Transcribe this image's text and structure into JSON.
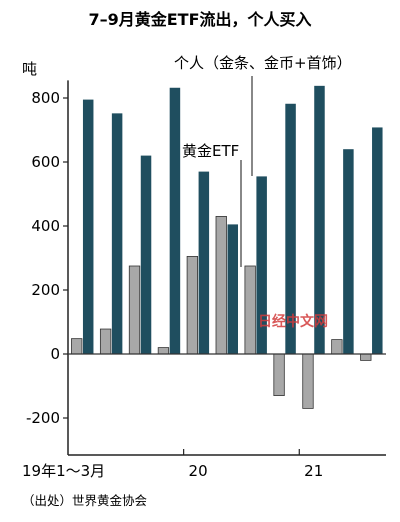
{
  "chart_data": {
    "type": "bar",
    "title": "7–9月黄金ETF流出，个人买入",
    "ylabel": "吨",
    "ylim": [
      -250,
      880
    ],
    "yticks": [
      -200,
      0,
      200,
      400,
      600,
      800
    ],
    "grid": false,
    "categories": [
      "19Q1",
      "19Q2",
      "19Q3",
      "19Q4",
      "20Q1",
      "20Q2",
      "20Q3",
      "20Q4",
      "21Q1",
      "21Q2",
      "21Q3"
    ],
    "xtick_labels": [
      "19年1～3月",
      "20",
      "21"
    ],
    "series": [
      {
        "name": "黄金ETF",
        "color": "#a8a8a8",
        "values": [
          48,
          78,
          275,
          20,
          305,
          430,
          275,
          -130,
          -170,
          45,
          -20
        ]
      },
      {
        "name": "个人（金条、金币+首饰）",
        "color": "#1f4e5f",
        "values": [
          795,
          752,
          620,
          832,
          570,
          405,
          555,
          782,
          838,
          640,
          708
        ]
      }
    ]
  },
  "source": "（出处）世界黄金协会",
  "watermark": "日经中文网"
}
